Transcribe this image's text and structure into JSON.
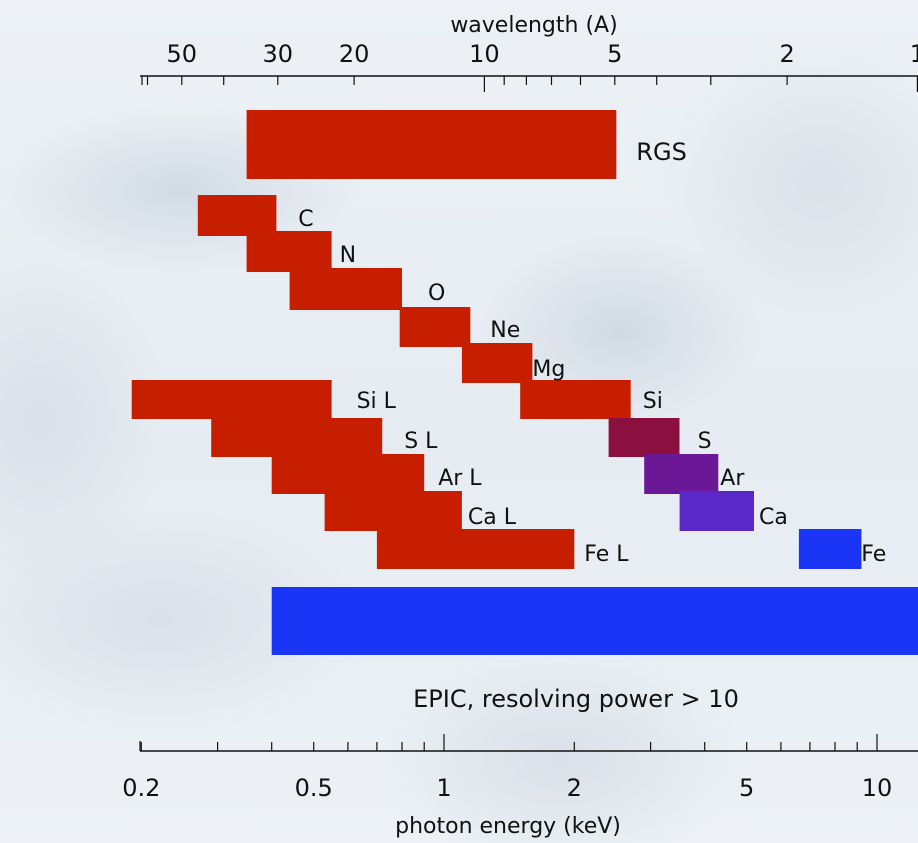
{
  "chart_data": {
    "type": "bar",
    "subtype": "horizontal-range",
    "x_axis": {
      "label": "photon energy (keV)",
      "scale": "log",
      "range": [
        0.19,
        13.0
      ],
      "tick_labels": [
        {
          "value": 0.2,
          "text": "0.2"
        },
        {
          "value": 0.5,
          "text": "0.5"
        },
        {
          "value": 1,
          "text": "1"
        },
        {
          "value": 2,
          "text": "2"
        },
        {
          "value": 5,
          "text": "5"
        },
        {
          "value": 10,
          "text": "10"
        }
      ],
      "major_ticks": [
        1,
        10
      ],
      "minor_ticks": [
        0.2,
        0.3,
        0.4,
        0.5,
        0.6,
        0.7,
        0.8,
        0.9,
        2,
        3,
        4,
        5,
        6,
        7,
        8,
        9
      ]
    },
    "top_axis": {
      "label": "wavelength (A)",
      "scale": "log-reciprocal",
      "tick_labels": [
        {
          "value": 50,
          "text": "50"
        },
        {
          "value": 30,
          "text": "30"
        },
        {
          "value": 20,
          "text": "20"
        },
        {
          "value": 10,
          "text": "10"
        },
        {
          "value": 5,
          "text": "5"
        },
        {
          "value": 2,
          "text": "2"
        },
        {
          "value": 1,
          "text": "1"
        }
      ],
      "major_ticks": [
        10,
        1
      ],
      "minor_ticks": [
        60,
        50,
        40,
        30,
        20,
        9,
        8,
        7,
        6,
        5,
        4,
        3,
        2
      ]
    },
    "series": [
      {
        "name": "RGS",
        "range_keV": [
          0.35,
          2.5
        ],
        "color": "#c81e00"
      },
      {
        "name": "C",
        "range_keV": [
          0.27,
          0.41
        ],
        "color": "#c81e00"
      },
      {
        "name": "N",
        "range_keV": [
          0.35,
          0.55
        ],
        "color": "#c81e00"
      },
      {
        "name": "O",
        "range_keV": [
          0.44,
          0.8
        ],
        "color": "#c81e00"
      },
      {
        "name": "Ne",
        "range_keV": [
          0.79,
          1.15
        ],
        "color": "#c81e00"
      },
      {
        "name": "Mg",
        "range_keV": [
          1.1,
          1.6
        ],
        "color": "#c81e00"
      },
      {
        "name": "Si",
        "range_keV": [
          1.5,
          2.7
        ],
        "color": "#c81e00"
      },
      {
        "name": "S",
        "range_keV": [
          2.4,
          3.5
        ],
        "color": "#8b1040"
      },
      {
        "name": "Ar",
        "range_keV": [
          2.9,
          4.3
        ],
        "color": "#6a1896"
      },
      {
        "name": "Ca",
        "range_keV": [
          3.5,
          5.2
        ],
        "color": "#5a28c8"
      },
      {
        "name": "Fe",
        "range_keV": [
          6.6,
          9.2
        ],
        "color": "#1a35f5"
      },
      {
        "name": "Si L",
        "range_keV": [
          0.19,
          0.55
        ],
        "color": "#c81e00"
      },
      {
        "name": "S L",
        "range_keV": [
          0.29,
          0.72
        ],
        "color": "#c81e00"
      },
      {
        "name": "Ar L",
        "range_keV": [
          0.4,
          0.9
        ],
        "color": "#c81e00"
      },
      {
        "name": "Ca L",
        "range_keV": [
          0.53,
          1.1
        ],
        "color": "#c81e00"
      },
      {
        "name": "Fe L",
        "range_keV": [
          0.7,
          2.0
        ],
        "color": "#c81e00"
      },
      {
        "name": "",
        "range_keV": [
          0.4,
          13.0
        ],
        "color": "#1a35f5"
      }
    ],
    "annotations": [
      "EPIC, resolving power > 10"
    ],
    "grid": false,
    "legend": "none"
  }
}
